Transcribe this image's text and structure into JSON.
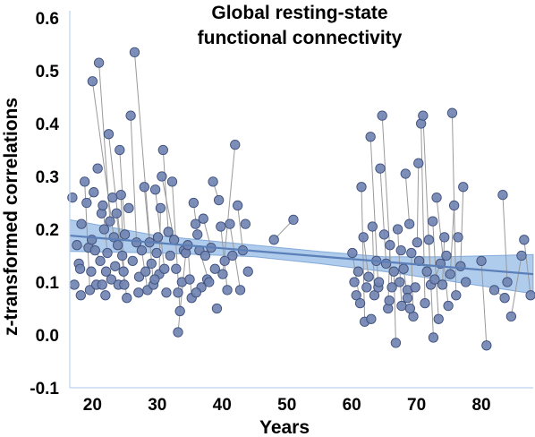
{
  "chart_data": {
    "type": "scatter",
    "title_lines": [
      "Global resting-state",
      "functional connectivity"
    ],
    "xlabel": "Years",
    "ylabel": "z-transformed correlations",
    "xlim": [
      16.5,
      88
    ],
    "ylim": [
      -0.1,
      0.6
    ],
    "x_ticks": [
      20,
      30,
      40,
      50,
      60,
      70,
      80
    ],
    "y_ticks": [
      -0.1,
      0.0,
      0.1,
      0.2,
      0.3,
      0.4,
      0.5,
      0.6
    ],
    "y_tick_labels": [
      "-0.1",
      "0.0",
      "0.1",
      "0.2",
      "0.3",
      "0.4",
      "0.5",
      "0.6"
    ],
    "grid": false,
    "legend": false,
    "colors": {
      "points": "#7286b2",
      "point_edge": "#3d4f7c",
      "connectors": "#9a9a9a",
      "fit_line": "#5b7fb8",
      "ci_band": "#6fa3dc",
      "axis": "#bcd2ee"
    },
    "fit": {
      "x": [
        16.5,
        88
      ],
      "y": [
        0.188,
        0.115
      ]
    },
    "ci": {
      "x": [
        16.5,
        30,
        45,
        55,
        65,
        75,
        88
      ],
      "upper": [
        0.218,
        0.188,
        0.17,
        0.158,
        0.148,
        0.148,
        0.152
      ],
      "lower": [
        0.158,
        0.155,
        0.148,
        0.135,
        0.12,
        0.102,
        0.078
      ]
    },
    "points": [
      [
        16.9,
        0.26
      ],
      [
        17.2,
        0.095
      ],
      [
        17.6,
        0.17
      ],
      [
        17.9,
        0.135
      ],
      [
        18.1,
        0.125
      ],
      [
        18.2,
        0.075
      ],
      [
        18.3,
        0.21
      ],
      [
        18.8,
        0.29
      ],
      [
        19.1,
        0.25
      ],
      [
        19.4,
        0.165
      ],
      [
        19.6,
        0.085
      ],
      [
        19.8,
        0.12
      ],
      [
        19.9,
        0.18
      ],
      [
        20.0,
        0.48
      ],
      [
        20.2,
        0.27
      ],
      [
        20.4,
        0.16
      ],
      [
        20.6,
        0.095
      ],
      [
        20.8,
        0.315
      ],
      [
        21.0,
        0.515
      ],
      [
        21.2,
        0.14
      ],
      [
        21.4,
        0.23
      ],
      [
        21.6,
        0.245
      ],
      [
        21.8,
        0.2
      ],
      [
        22.0,
        0.075
      ],
      [
        22.1,
        0.12
      ],
      [
        22.3,
        0.155
      ],
      [
        22.5,
        0.38
      ],
      [
        22.7,
        0.215
      ],
      [
        22.9,
        0.105
      ],
      [
        23.1,
        0.26
      ],
      [
        23.3,
        0.185
      ],
      [
        23.5,
        0.13
      ],
      [
        23.7,
        0.23
      ],
      [
        23.9,
        0.17
      ],
      [
        24.0,
        0.095
      ],
      [
        24.2,
        0.35
      ],
      [
        24.4,
        0.265
      ],
      [
        24.6,
        0.15
      ],
      [
        24.8,
        0.12
      ],
      [
        25.0,
        0.19
      ],
      [
        25.3,
        0.07
      ],
      [
        25.6,
        0.24
      ],
      [
        25.9,
        0.415
      ],
      [
        26.2,
        0.14
      ],
      [
        26.5,
        0.535
      ],
      [
        26.8,
        0.175
      ],
      [
        27.2,
        0.11
      ],
      [
        27.6,
        0.16
      ],
      [
        28.0,
        0.28
      ],
      [
        28.2,
        0.12
      ],
      [
        28.5,
        0.085
      ],
      [
        28.8,
        0.175
      ],
      [
        29.1,
        0.135
      ],
      [
        29.4,
        0.095
      ],
      [
        29.7,
        0.275
      ],
      [
        29.9,
        0.155
      ],
      [
        30.1,
        0.185
      ],
      [
        30.3,
        0.115
      ],
      [
        30.5,
        0.24
      ],
      [
        30.7,
        0.3
      ],
      [
        30.9,
        0.35
      ],
      [
        31.1,
        0.125
      ],
      [
        31.4,
        0.08
      ],
      [
        31.7,
        0.195
      ],
      [
        32.0,
        0.15
      ],
      [
        32.3,
        0.29
      ],
      [
        32.6,
        0.18
      ],
      [
        32.9,
        0.125
      ],
      [
        33.2,
        0.08
      ],
      [
        33.5,
        0.045
      ],
      [
        33.8,
        0.1
      ],
      [
        34.1,
        0.16
      ],
      [
        34.4,
        0.155
      ],
      [
        34.7,
        0.17
      ],
      [
        35.0,
        0.105
      ],
      [
        35.3,
        0.07
      ],
      [
        35.6,
        0.25
      ],
      [
        35.9,
        0.21
      ],
      [
        36.2,
        0.19
      ],
      [
        36.5,
        0.16
      ],
      [
        36.8,
        0.09
      ],
      [
        37.1,
        0.22
      ],
      [
        37.4,
        0.15
      ],
      [
        37.7,
        0.105
      ],
      [
        38.0,
        0.1
      ],
      [
        38.3,
        0.165
      ],
      [
        38.6,
        0.29
      ],
      [
        38.9,
        0.125
      ],
      [
        39.2,
        0.05
      ],
      [
        39.5,
        0.255
      ],
      [
        39.8,
        0.205
      ],
      [
        40.1,
        0.115
      ],
      [
        40.4,
        0.14
      ],
      [
        40.8,
        0.085
      ],
      [
        41.2,
        0.21
      ],
      [
        41.6,
        0.15
      ],
      [
        42.0,
        0.36
      ],
      [
        42.4,
        0.245
      ],
      [
        42.8,
        0.085
      ],
      [
        43.2,
        0.16
      ],
      [
        43.6,
        0.21
      ],
      [
        44.0,
        0.12
      ],
      [
        33.2,
        0.005
      ],
      [
        29.6,
        0.105
      ],
      [
        36.0,
        0.08
      ],
      [
        24.9,
        0.095
      ],
      [
        27.1,
        0.08
      ],
      [
        21.5,
        0.095
      ],
      [
        48.0,
        0.18
      ],
      [
        51.0,
        0.218
      ],
      [
        60.1,
        0.155
      ],
      [
        60.4,
        0.1
      ],
      [
        60.7,
        0.075
      ],
      [
        61.0,
        0.12
      ],
      [
        61.3,
        0.06
      ],
      [
        61.5,
        0.28
      ],
      [
        61.8,
        0.185
      ],
      [
        62.0,
        0.025
      ],
      [
        62.3,
        0.09
      ],
      [
        62.6,
        0.11
      ],
      [
        62.9,
        0.375
      ],
      [
        63.2,
        0.205
      ],
      [
        63.5,
        0.075
      ],
      [
        63.8,
        0.14
      ],
      [
        64.1,
        0.09
      ],
      [
        64.4,
        0.315
      ],
      [
        64.7,
        0.415
      ],
      [
        65.0,
        0.19
      ],
      [
        65.3,
        0.135
      ],
      [
        65.6,
        0.05
      ],
      [
        65.9,
        0.17
      ],
      [
        66.2,
        0.09
      ],
      [
        66.5,
        0.12
      ],
      [
        66.8,
        -0.015
      ],
      [
        67.1,
        0.2
      ],
      [
        67.4,
        0.1
      ],
      [
        67.7,
        0.055
      ],
      [
        68.0,
        0.125
      ],
      [
        68.3,
        0.305
      ],
      [
        68.6,
        0.085
      ],
      [
        68.9,
        0.21
      ],
      [
        69.2,
        0.155
      ],
      [
        69.5,
        0.035
      ],
      [
        69.8,
        0.09
      ],
      [
        70.1,
        0.175
      ],
      [
        70.4,
        0.14
      ],
      [
        70.7,
        0.4
      ],
      [
        71.0,
        0.415
      ],
      [
        71.3,
        0.06
      ],
      [
        71.6,
        0.12
      ],
      [
        71.9,
        0.18
      ],
      [
        72.2,
        0.095
      ],
      [
        72.5,
        0.215
      ],
      [
        72.8,
        0.105
      ],
      [
        73.1,
        0.26
      ],
      [
        73.4,
        0.03
      ],
      [
        73.7,
        0.135
      ],
      [
        74.0,
        0.095
      ],
      [
        74.3,
        0.185
      ],
      [
        74.6,
        0.15
      ],
      [
        74.9,
        0.055
      ],
      [
        75.2,
        0.115
      ],
      [
        75.5,
        0.42
      ],
      [
        75.8,
        0.245
      ],
      [
        76.1,
        0.075
      ],
      [
        76.4,
        0.185
      ],
      [
        76.8,
        0.13
      ],
      [
        77.2,
        0.28
      ],
      [
        77.6,
        0.1
      ],
      [
        67.6,
        0.16
      ],
      [
        69.0,
        0.05
      ],
      [
        65.8,
        0.065
      ],
      [
        72.6,
        -0.005
      ],
      [
        63.0,
        0.03
      ],
      [
        70.3,
        0.325
      ],
      [
        64.2,
        0.1
      ],
      [
        80.0,
        0.14
      ],
      [
        80.8,
        -0.02
      ],
      [
        83.3,
        0.265
      ],
      [
        83.6,
        0.07
      ],
      [
        84.0,
        0.1
      ],
      [
        84.6,
        0.035
      ],
      [
        86.2,
        0.15
      ],
      [
        86.6,
        0.18
      ],
      [
        87.6,
        0.075
      ],
      [
        82.0,
        0.085
      ],
      [
        68.6,
        0.07
      ]
    ],
    "links": [
      [
        20.0,
        0.48,
        23.3,
        0.185
      ],
      [
        21.0,
        0.515,
        22.7,
        0.215
      ],
      [
        22.5,
        0.38,
        24.6,
        0.15
      ],
      [
        26.5,
        0.535,
        29.4,
        0.095
      ],
      [
        25.9,
        0.415,
        26.8,
        0.175
      ],
      [
        24.2,
        0.35,
        25.0,
        0.19
      ],
      [
        30.9,
        0.35,
        31.7,
        0.195
      ],
      [
        28.0,
        0.28,
        28.8,
        0.175
      ],
      [
        32.3,
        0.29,
        33.5,
        0.045
      ],
      [
        30.5,
        0.24,
        30.3,
        0.115
      ],
      [
        19.1,
        0.25,
        20.2,
        0.27
      ],
      [
        21.6,
        0.245,
        22.3,
        0.155
      ],
      [
        42.0,
        0.36,
        40.1,
        0.115
      ],
      [
        38.6,
        0.29,
        39.5,
        0.255
      ],
      [
        35.6,
        0.25,
        36.2,
        0.19
      ],
      [
        42.4,
        0.245,
        43.2,
        0.16
      ],
      [
        33.2,
        0.005,
        34.4,
        0.155
      ],
      [
        39.8,
        0.205,
        40.8,
        0.085
      ],
      [
        17.6,
        0.17,
        19.4,
        0.165
      ],
      [
        24.4,
        0.265,
        24.9,
        0.095
      ],
      [
        37.1,
        0.22,
        38.3,
        0.165
      ],
      [
        27.6,
        0.16,
        28.5,
        0.085
      ],
      [
        23.7,
        0.23,
        25.3,
        0.07
      ],
      [
        19.9,
        0.18,
        21.2,
        0.14
      ],
      [
        30.7,
        0.3,
        32.6,
        0.18
      ],
      [
        36.5,
        0.16,
        38.0,
        0.1
      ],
      [
        41.2,
        0.21,
        42.8,
        0.085
      ],
      [
        29.7,
        0.275,
        31.1,
        0.125
      ],
      [
        34.7,
        0.17,
        35.3,
        0.07
      ],
      [
        18.8,
        0.29,
        19.6,
        0.085
      ],
      [
        48.0,
        0.18,
        51.0,
        0.218
      ],
      [
        64.7,
        0.415,
        66.2,
        0.09
      ],
      [
        62.9,
        0.375,
        64.1,
        0.09
      ],
      [
        64.4,
        0.315,
        65.3,
        0.135
      ],
      [
        61.5,
        0.28,
        62.0,
        0.025
      ],
      [
        71.0,
        0.415,
        72.2,
        0.095
      ],
      [
        70.7,
        0.4,
        71.3,
        0.06
      ],
      [
        75.5,
        0.42,
        76.1,
        0.075
      ],
      [
        73.1,
        0.26,
        74.9,
        0.055
      ],
      [
        68.3,
        0.305,
        68.9,
        0.21
      ],
      [
        77.2,
        0.28,
        76.8,
        0.13
      ],
      [
        63.2,
        0.205,
        63.5,
        0.075
      ],
      [
        67.1,
        0.2,
        67.7,
        0.055
      ],
      [
        72.5,
        0.215,
        73.4,
        0.03
      ],
      [
        66.5,
        0.12,
        66.8,
        -0.015
      ],
      [
        70.3,
        0.325,
        70.1,
        0.175
      ],
      [
        75.8,
        0.245,
        75.2,
        0.115
      ],
      [
        61.8,
        0.185,
        62.6,
        0.11
      ],
      [
        69.2,
        0.155,
        69.5,
        0.035
      ],
      [
        74.3,
        0.185,
        74.0,
        0.095
      ],
      [
        60.1,
        0.155,
        61.3,
        0.06
      ],
      [
        65.9,
        0.17,
        65.6,
        0.05
      ],
      [
        71.9,
        0.18,
        72.6,
        -0.005
      ],
      [
        68.0,
        0.125,
        68.6,
        0.07
      ],
      [
        73.7,
        0.135,
        72.8,
        0.105
      ],
      [
        83.3,
        0.265,
        84.0,
        0.1
      ],
      [
        86.6,
        0.18,
        87.6,
        0.075
      ],
      [
        80.0,
        0.14,
        80.8,
        -0.02
      ],
      [
        86.2,
        0.15,
        84.6,
        0.035
      ],
      [
        82.0,
        0.085,
        83.6,
        0.07
      ]
    ]
  }
}
